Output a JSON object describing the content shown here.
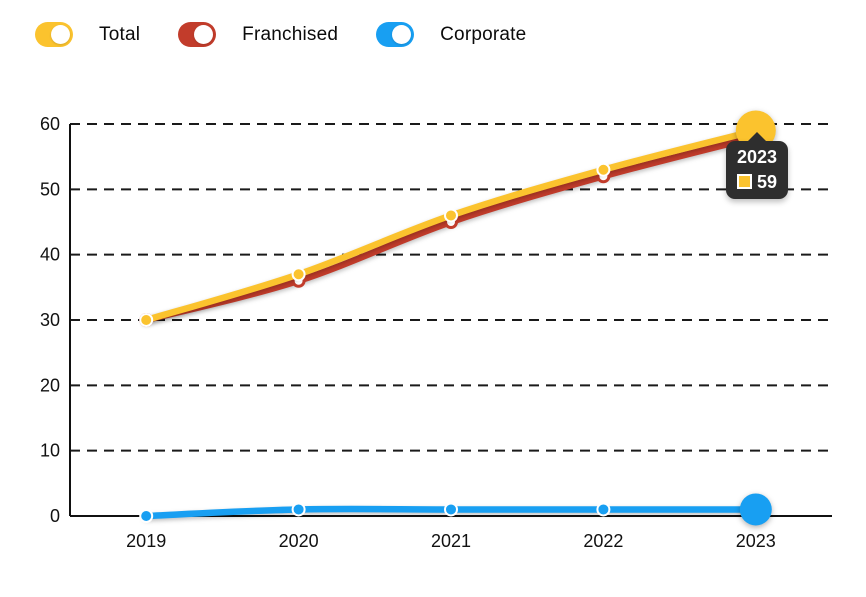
{
  "legend": {
    "items": [
      {
        "label": "Total",
        "color": "#FBC32E",
        "state": "on"
      },
      {
        "label": "Franchised",
        "color": "#C23C2B",
        "state": "on"
      },
      {
        "label": "Corporate",
        "color": "#189FF2",
        "state": "on"
      }
    ]
  },
  "tooltip": {
    "title": "2023",
    "value": "59",
    "swatch_color": "#FBC32E",
    "background": "#2E2E2E",
    "text_color": "#FFFFFF"
  },
  "chart_data": {
    "type": "line",
    "x": [
      "2019",
      "2020",
      "2021",
      "2022",
      "2023"
    ],
    "series": [
      {
        "name": "Total",
        "color": "#FBC32E",
        "values": [
          30,
          37,
          46,
          53,
          59
        ]
      },
      {
        "name": "Franchised",
        "color": "#C23C2B",
        "values": [
          30,
          36,
          45,
          52,
          58
        ]
      },
      {
        "name": "Corporate",
        "color": "#189FF2",
        "values": [
          0,
          1,
          1,
          1,
          1
        ]
      }
    ],
    "title": "",
    "xlabel": "",
    "ylabel": "",
    "ylim": [
      0,
      60
    ],
    "yticks": [
      0,
      10,
      20,
      30,
      40,
      50,
      60
    ],
    "grid": "dashed-horizontal",
    "grid_color": "#1A1A1A",
    "axis_color": "#111111",
    "label_color": "#111111",
    "legend_position": "top",
    "highlighted_x": "2023",
    "highlighted_series_value": 59
  }
}
